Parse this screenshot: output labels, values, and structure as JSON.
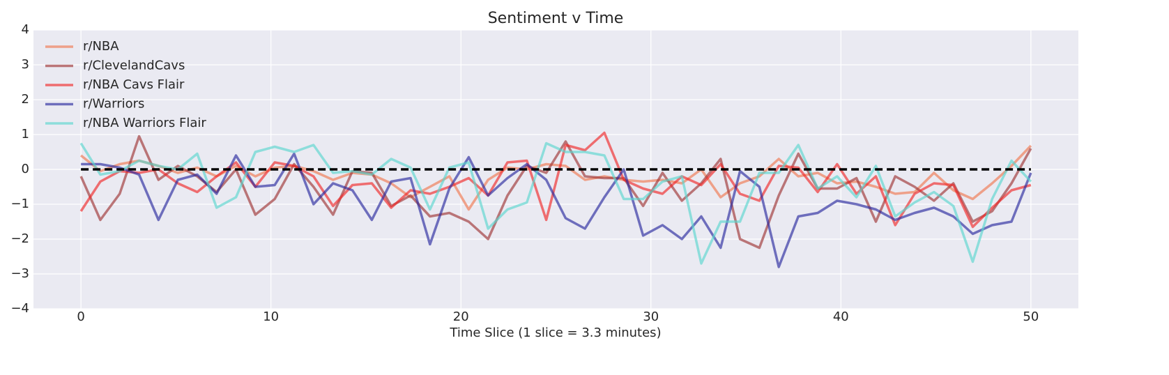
{
  "chart_data": {
    "type": "line",
    "title": "Sentiment v Time",
    "x_label": "Time Slice (1 slice = 3.3 minutes)",
    "x": [
      0,
      1.02,
      2.04,
      3.06,
      4.08,
      5.1,
      6.12,
      7.14,
      8.16,
      9.18,
      10.2,
      11.22,
      12.24,
      13.27,
      14.29,
      15.31,
      16.33,
      17.35,
      18.37,
      19.39,
      20.41,
      21.43,
      22.45,
      23.47,
      24.49,
      25.51,
      26.53,
      27.55,
      28.57,
      29.59,
      30.61,
      31.63,
      32.65,
      33.67,
      34.69,
      35.71,
      36.73,
      37.76,
      38.78,
      39.8,
      40.82,
      41.84,
      42.86,
      43.88,
      44.9,
      45.92,
      46.94,
      47.96,
      48.98,
      50
    ],
    "series": [
      {
        "name": "r/NBA",
        "color": "#f07850",
        "values": [
          0.4,
          -0.05,
          0.15,
          0.25,
          0.1,
          -0.1,
          0.05,
          -0.2,
          0.1,
          -0.2,
          0.05,
          0.1,
          -0.05,
          -0.3,
          -0.1,
          -0.15,
          -0.4,
          -0.8,
          -0.5,
          -0.2,
          -1.15,
          -0.3,
          0.05,
          0.0,
          0.15,
          0.1,
          -0.3,
          -0.2,
          -0.3,
          -0.35,
          -0.3,
          -0.4,
          0.0,
          -0.8,
          -0.4,
          -0.2,
          0.3,
          -0.2,
          -0.1,
          -0.4,
          -0.35,
          -0.5,
          -0.7,
          -0.65,
          -0.1,
          -0.6,
          -0.85,
          -0.4,
          0.1,
          0.68
        ]
      },
      {
        "name": "r/ClevelandCavs",
        "color": "#9e3434",
        "values": [
          -0.2,
          -1.45,
          -0.7,
          0.95,
          -0.3,
          0.1,
          -0.2,
          -0.65,
          0.0,
          -1.3,
          -0.85,
          0.15,
          -0.5,
          -1.3,
          -0.05,
          -0.1,
          -1.05,
          -0.75,
          -1.35,
          -1.25,
          -1.5,
          -2.0,
          -0.75,
          0.1,
          -0.1,
          0.8,
          -0.2,
          -0.25,
          -0.25,
          -1.05,
          -0.1,
          -0.9,
          -0.4,
          0.3,
          -2.0,
          -2.25,
          -0.75,
          0.45,
          -0.55,
          -0.55,
          -0.25,
          -1.5,
          -0.2,
          -0.5,
          -0.9,
          -0.4,
          -1.5,
          -1.2,
          -0.4,
          0.6
        ]
      },
      {
        "name": "r/NBA Cavs Flair",
        "color": "#f02828",
        "values": [
          -1.2,
          -0.35,
          -0.05,
          -0.1,
          0.0,
          -0.4,
          -0.65,
          -0.2,
          0.2,
          -0.5,
          0.2,
          0.1,
          -0.2,
          -1.05,
          -0.45,
          -0.4,
          -1.1,
          -0.6,
          -0.7,
          -0.5,
          -0.25,
          -0.75,
          0.2,
          0.25,
          -1.45,
          0.7,
          0.55,
          1.05,
          -0.3,
          -0.55,
          -0.7,
          -0.2,
          -0.45,
          0.15,
          -0.7,
          -0.9,
          0.1,
          0.05,
          -0.65,
          0.15,
          -0.7,
          -0.2,
          -1.6,
          -0.7,
          -0.4,
          -0.45,
          -1.65,
          -1.1,
          -0.6,
          -0.45
        ]
      },
      {
        "name": "r/Warriors",
        "color": "#2a2a9e",
        "values": [
          0.15,
          0.15,
          0.05,
          -0.15,
          -1.45,
          -0.3,
          -0.15,
          -0.7,
          0.4,
          -0.5,
          -0.45,
          0.45,
          -1.0,
          -0.4,
          -0.6,
          -1.45,
          -0.35,
          -0.25,
          -2.15,
          -0.55,
          0.35,
          -0.75,
          -0.25,
          0.15,
          -0.3,
          -1.4,
          -1.7,
          -0.8,
          0.0,
          -1.9,
          -1.6,
          -2.0,
          -1.35,
          -2.25,
          -0.05,
          -0.5,
          -2.8,
          -1.35,
          -1.25,
          -0.9,
          -1.0,
          -1.15,
          -1.45,
          -1.25,
          -1.1,
          -1.35,
          -1.85,
          -1.6,
          -1.5,
          -0.1
        ]
      },
      {
        "name": "r/NBA Warriors Flair",
        "color": "#5ad6ce",
        "values": [
          0.75,
          -0.15,
          -0.05,
          0.25,
          0.1,
          0.0,
          0.45,
          -1.1,
          -0.8,
          0.5,
          0.65,
          0.5,
          0.7,
          -0.1,
          -0.05,
          -0.15,
          0.3,
          0.05,
          -1.15,
          0.05,
          0.2,
          -1.7,
          -1.15,
          -0.95,
          0.75,
          0.5,
          0.5,
          0.4,
          -0.85,
          -0.85,
          -0.35,
          -0.2,
          -2.7,
          -1.5,
          -1.5,
          -0.1,
          -0.1,
          0.7,
          -0.55,
          -0.2,
          -0.8,
          0.1,
          -1.35,
          -0.95,
          -0.65,
          -1.05,
          -2.65,
          -0.85,
          0.25,
          -0.35
        ]
      }
    ],
    "reference_line": {
      "value": 0,
      "xrange": [
        0,
        50
      ],
      "color": "#000000",
      "style": "dashed"
    },
    "xlim": [
      -2.5,
      52.5
    ],
    "xticks": [
      0,
      10,
      20,
      30,
      40,
      50
    ],
    "ylim": [
      -4,
      4
    ],
    "yticks": [
      {
        "value": -4,
        "label": "−4"
      },
      {
        "value": -3,
        "label": "−3"
      },
      {
        "value": -2,
        "label": "−2"
      },
      {
        "value": -1,
        "label": "−1"
      },
      0,
      1,
      2,
      3,
      4
    ],
    "grid": true,
    "legend": "upper left"
  }
}
